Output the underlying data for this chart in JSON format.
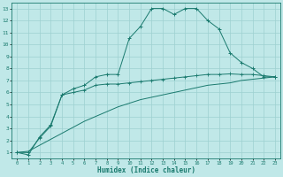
{
  "line1_x": [
    0,
    1,
    2,
    3,
    4,
    5,
    6,
    7,
    8,
    9,
    10,
    11,
    12,
    13,
    14,
    15,
    16,
    17,
    18,
    19,
    20,
    21,
    22,
    23
  ],
  "line1_y": [
    1.0,
    0.8,
    2.3,
    3.3,
    5.8,
    6.3,
    6.6,
    7.3,
    7.5,
    7.5,
    10.5,
    11.5,
    13.0,
    13.0,
    12.5,
    13.0,
    13.0,
    12.0,
    11.3,
    9.3,
    8.5,
    8.0,
    7.3,
    7.3
  ],
  "line2_x": [
    0,
    1,
    2,
    3,
    4,
    5,
    6,
    7,
    8,
    9,
    10,
    11,
    12,
    13,
    14,
    15,
    16,
    17,
    18,
    19,
    20,
    21,
    22,
    23
  ],
  "line2_y": [
    1.0,
    1.1,
    1.6,
    2.1,
    2.6,
    3.1,
    3.6,
    4.0,
    4.4,
    4.8,
    5.1,
    5.4,
    5.6,
    5.8,
    6.0,
    6.2,
    6.4,
    6.6,
    6.7,
    6.8,
    7.0,
    7.1,
    7.2,
    7.3
  ],
  "line3_x": [
    0,
    1,
    2,
    3,
    4,
    5,
    6,
    7,
    8,
    9,
    10,
    11,
    12,
    13,
    14,
    15,
    16,
    17,
    18,
    19,
    20,
    21,
    22,
    23
  ],
  "line3_y": [
    1.0,
    1.0,
    2.2,
    3.2,
    5.8,
    6.0,
    6.2,
    6.6,
    6.7,
    6.7,
    6.8,
    6.9,
    7.0,
    7.1,
    7.2,
    7.3,
    7.4,
    7.5,
    7.5,
    7.55,
    7.5,
    7.5,
    7.4,
    7.3
  ],
  "line_color": "#1a7a6e",
  "bg_color": "#c0e8e8",
  "grid_color": "#9dd0d0",
  "xlabel": "Humidex (Indice chaleur)",
  "ylim": [
    0.5,
    13.5
  ],
  "xlim": [
    -0.5,
    23.5
  ],
  "yticks": [
    1,
    2,
    3,
    4,
    5,
    6,
    7,
    8,
    9,
    10,
    11,
    12,
    13
  ],
  "xticks": [
    0,
    1,
    2,
    3,
    4,
    5,
    6,
    7,
    8,
    9,
    10,
    11,
    12,
    13,
    14,
    15,
    16,
    17,
    18,
    19,
    20,
    21,
    22,
    23
  ]
}
